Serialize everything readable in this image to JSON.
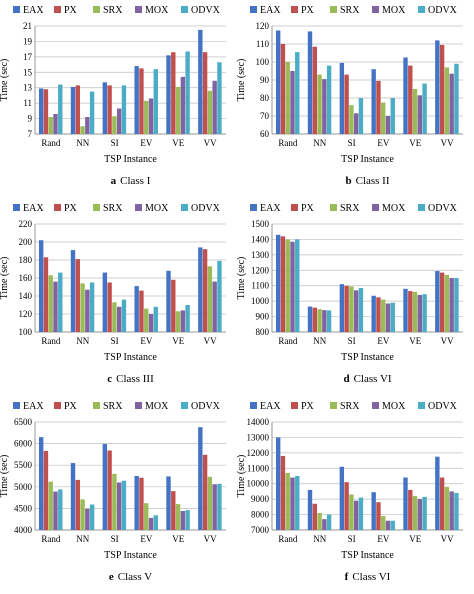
{
  "chart_data": [
    {
      "type": "bar",
      "caption_letter": "a",
      "caption_text": "Class I",
      "xlabel": "TSP Instance",
      "ylabel": "Time (sec)",
      "categories": [
        "Rand",
        "NN",
        "SI",
        "EV",
        "VE",
        "VV"
      ],
      "ylim": [
        7,
        21
      ],
      "yticks": [
        "7",
        "9",
        "11",
        "13",
        "15",
        "17",
        "19",
        "21"
      ],
      "ytick_values": [
        7,
        9,
        11,
        13,
        15,
        17,
        19,
        21
      ],
      "legend": "top",
      "grid": true,
      "series": [
        {
          "name": "EAX",
          "values": [
            12.9,
            13.1,
            13.7,
            15.8,
            17.2,
            20.5
          ]
        },
        {
          "name": "PX",
          "values": [
            12.8,
            13.3,
            13.3,
            15.5,
            17.6,
            17.6
          ]
        },
        {
          "name": "SRX",
          "values": [
            9.2,
            8.0,
            9.3,
            11.3,
            13.1,
            12.6
          ]
        },
        {
          "name": "MOX",
          "values": [
            9.6,
            9.2,
            10.3,
            11.6,
            14.4,
            13.9
          ]
        },
        {
          "name": "ODVX",
          "values": [
            13.4,
            12.5,
            13.3,
            15.4,
            17.7,
            16.3
          ]
        }
      ]
    },
    {
      "type": "bar",
      "caption_letter": "b",
      "caption_text": "Class II",
      "xlabel": "TSP Instance",
      "ylabel": "Time (sec)",
      "categories": [
        "Rand",
        "NN",
        "SI",
        "EV",
        "VE",
        "VV"
      ],
      "ylim": [
        60,
        120
      ],
      "yticks": [
        "60",
        "70",
        "80",
        "90",
        "100",
        "110",
        "120"
      ],
      "ytick_values": [
        60,
        70,
        80,
        90,
        100,
        110,
        120
      ],
      "legend": "top",
      "grid": true,
      "series": [
        {
          "name": "EAX",
          "values": [
            117.5,
            117.0,
            99.5,
            96.0,
            102.5,
            112.0
          ]
        },
        {
          "name": "PX",
          "values": [
            110.0,
            108.5,
            93.0,
            89.5,
            98.0,
            109.5
          ]
        },
        {
          "name": "SRX",
          "values": [
            100.0,
            93.0,
            76.0,
            77.5,
            85.0,
            97.0
          ]
        },
        {
          "name": "MOX",
          "values": [
            95.0,
            90.5,
            71.5,
            70.0,
            81.5,
            93.5
          ]
        },
        {
          "name": "ODVX",
          "values": [
            105.5,
            98.0,
            80.0,
            80.0,
            88.0,
            99.0
          ]
        }
      ]
    },
    {
      "type": "bar",
      "caption_letter": "c",
      "caption_text": "Class III",
      "xlabel": "TSP Instance",
      "ylabel": "Time (sec)",
      "categories": [
        "Rand",
        "NN",
        "SI",
        "EV",
        "VE",
        "VV"
      ],
      "ylim": [
        100,
        220
      ],
      "yticks": [
        "100",
        "120",
        "140",
        "160",
        "180",
        "200",
        "220"
      ],
      "ytick_values": [
        100,
        120,
        140,
        160,
        180,
        200,
        220
      ],
      "legend": "top",
      "grid": true,
      "series": [
        {
          "name": "EAX",
          "values": [
            202,
            191,
            166,
            151,
            168,
            194
          ]
        },
        {
          "name": "PX",
          "values": [
            183,
            181,
            155,
            146,
            158,
            192
          ]
        },
        {
          "name": "SRX",
          "values": [
            163,
            154,
            133,
            126,
            123,
            173
          ]
        },
        {
          "name": "MOX",
          "values": [
            156,
            147,
            128,
            120,
            124,
            156
          ]
        },
        {
          "name": "ODVX",
          "values": [
            166,
            155,
            136,
            128,
            130,
            179
          ]
        }
      ]
    },
    {
      "type": "bar",
      "caption_letter": "d",
      "caption_text": "Class VI",
      "xlabel": "TSP Instance",
      "ylabel": "Time (sec)",
      "categories": [
        "Rand",
        "NN",
        "SI",
        "EV",
        "VE",
        "VV"
      ],
      "ylim": [
        800,
        1500
      ],
      "yticks": [
        "800",
        "900",
        "1000",
        "1100",
        "1200",
        "1300",
        "1400",
        "1500"
      ],
      "ytick_values": [
        800,
        900,
        1000,
        1100,
        1200,
        1300,
        1400,
        1500
      ],
      "legend": "top",
      "grid": true,
      "series": [
        {
          "name": "EAX",
          "values": [
            1430,
            965,
            1110,
            1035,
            1080,
            1195
          ]
        },
        {
          "name": "PX",
          "values": [
            1420,
            958,
            1100,
            1025,
            1065,
            1185
          ]
        },
        {
          "name": "SRX",
          "values": [
            1400,
            948,
            1095,
            1010,
            1060,
            1170
          ]
        },
        {
          "name": "MOX",
          "values": [
            1385,
            942,
            1070,
            985,
            1040,
            1150
          ]
        },
        {
          "name": "ODVX",
          "values": [
            1400,
            940,
            1085,
            990,
            1045,
            1150
          ]
        }
      ]
    },
    {
      "type": "bar",
      "caption_letter": "e",
      "caption_text": "Class V",
      "xlabel": "TSP Instance",
      "ylabel": "Time (sec)",
      "categories": [
        "Rand",
        "NN",
        "SI",
        "EV",
        "VE",
        "VV"
      ],
      "ylim": [
        4000,
        6500
      ],
      "yticks": [
        "4000",
        "4500",
        "5000",
        "5500",
        "6000",
        "6500"
      ],
      "ytick_values": [
        4000,
        4500,
        5000,
        5500,
        6000,
        6500
      ],
      "legend": "top",
      "grid": true,
      "series": [
        {
          "name": "EAX",
          "values": [
            6150,
            5550,
            5990,
            5250,
            5240,
            6380
          ]
        },
        {
          "name": "PX",
          "values": [
            5830,
            5160,
            5840,
            5210,
            4900,
            5740
          ]
        },
        {
          "name": "SRX",
          "values": [
            5120,
            4710,
            5300,
            4620,
            4600,
            5230
          ]
        },
        {
          "name": "MOX",
          "values": [
            4890,
            4490,
            5100,
            4280,
            4440,
            5060
          ]
        },
        {
          "name": "ODVX",
          "values": [
            4940,
            4590,
            5140,
            4340,
            4460,
            5070
          ]
        }
      ]
    },
    {
      "type": "bar",
      "caption_letter": "f",
      "caption_text": "Class VI",
      "xlabel": "TSP Instance",
      "ylabel": "Time (sec)",
      "categories": [
        "Rand",
        "NN",
        "SI",
        "EV",
        "VE",
        "VV"
      ],
      "ylim": [
        7000,
        14000
      ],
      "yticks": [
        "7000",
        "8000",
        "9000",
        "10000",
        "11000",
        "12000",
        "13000",
        "14000"
      ],
      "ytick_values": [
        7000,
        8000,
        9000,
        10000,
        11000,
        12000,
        13000,
        14000
      ],
      "legend": "top",
      "grid": true,
      "series": [
        {
          "name": "EAX",
          "values": [
            13000,
            9600,
            11100,
            9450,
            10400,
            11750
          ]
        },
        {
          "name": "PX",
          "values": [
            11800,
            8700,
            10100,
            8800,
            9600,
            10400
          ]
        },
        {
          "name": "SRX",
          "values": [
            10700,
            8100,
            9300,
            7900,
            9200,
            9800
          ]
        },
        {
          "name": "MOX",
          "values": [
            10400,
            7700,
            8900,
            7600,
            9000,
            9500
          ]
        },
        {
          "name": "ODVX",
          "values": [
            10500,
            8000,
            9100,
            7600,
            9150,
            9400
          ]
        }
      ]
    }
  ],
  "colors": [
    "#4472c4",
    "#c0504d",
    "#9bbb59",
    "#8064a2",
    "#4bacc6"
  ]
}
